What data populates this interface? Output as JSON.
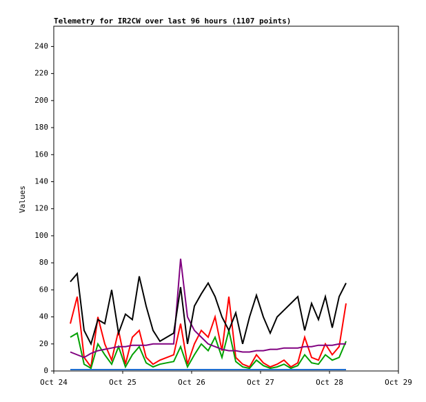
{
  "chart_data": {
    "type": "line",
    "title": "Telemetry for IR2CW over last 96 hours (1107 points)",
    "y_label": "Values",
    "x": [
      0.24,
      0.34,
      0.44,
      0.54,
      0.64,
      0.74,
      0.84,
      0.94,
      1.04,
      1.14,
      1.24,
      1.34,
      1.44,
      1.54,
      1.64,
      1.74,
      1.84,
      1.94,
      2.04,
      2.14,
      2.24,
      2.34,
      2.44,
      2.54,
      2.64,
      2.74,
      2.84,
      2.94,
      3.04,
      3.14,
      3.24,
      3.34,
      3.44,
      3.54,
      3.64,
      3.74,
      3.84,
      3.94,
      4.04,
      4.14,
      4.24
    ],
    "series": [
      {
        "color": "#ff0000",
        "values": [
          35,
          55,
          10,
          3,
          40,
          20,
          8,
          30,
          5,
          25,
          30,
          10,
          5,
          8,
          10,
          12,
          35,
          5,
          20,
          30,
          25,
          40,
          15,
          55,
          10,
          5,
          3,
          12,
          6,
          3,
          5,
          8,
          3,
          6,
          25,
          10,
          8,
          20,
          12,
          18,
          50
        ]
      },
      {
        "color": "#00a000",
        "values": [
          25,
          28,
          5,
          2,
          20,
          12,
          5,
          18,
          3,
          12,
          18,
          6,
          3,
          5,
          6,
          7,
          18,
          3,
          12,
          20,
          15,
          25,
          10,
          30,
          7,
          3,
          2,
          8,
          4,
          2,
          3,
          5,
          2,
          4,
          12,
          6,
          5,
          12,
          8,
          10,
          22
        ]
      },
      {
        "color": "#800080",
        "values": [
          14,
          12,
          10,
          13,
          15,
          16,
          17,
          18,
          18,
          19,
          19,
          19,
          20,
          20,
          20,
          20,
          83,
          40,
          30,
          25,
          20,
          18,
          16,
          15,
          15,
          14,
          14,
          15,
          15,
          16,
          16,
          17,
          17,
          17,
          18,
          18,
          19,
          19,
          19,
          20,
          20
        ]
      },
      {
        "color": "#1f6fd0",
        "values": [
          1,
          1,
          1,
          1,
          1,
          1,
          1,
          1,
          1,
          1,
          1,
          1,
          1,
          1,
          1,
          1,
          1,
          1,
          1,
          1,
          1,
          1,
          1,
          1,
          1,
          1,
          1,
          1,
          1,
          1,
          1,
          1,
          1,
          1,
          1,
          1,
          1,
          1,
          1,
          1,
          1
        ]
      },
      {
        "color": "#000000",
        "values": [
          66,
          72,
          30,
          20,
          38,
          35,
          60,
          28,
          42,
          38,
          70,
          48,
          30,
          22,
          25,
          28,
          62,
          20,
          48,
          57,
          65,
          55,
          40,
          30,
          43,
          20,
          40,
          56,
          40,
          28,
          40,
          45,
          50,
          55,
          30,
          50,
          38,
          55,
          32,
          55,
          65
        ]
      }
    ],
    "xlim": [
      0,
      5
    ],
    "xticks": [
      {
        "value": 0,
        "label": "Oct 24"
      },
      {
        "value": 1,
        "label": "Oct 25"
      },
      {
        "value": 2,
        "label": "Oct 26"
      },
      {
        "value": 3,
        "label": "Oct 27"
      },
      {
        "value": 4,
        "label": "Oct 28"
      },
      {
        "value": 5,
        "label": "Oct 29"
      }
    ],
    "ylim": [
      0,
      255
    ],
    "yticks": [
      0,
      20,
      40,
      60,
      80,
      100,
      120,
      140,
      160,
      180,
      200,
      220,
      240
    ]
  }
}
